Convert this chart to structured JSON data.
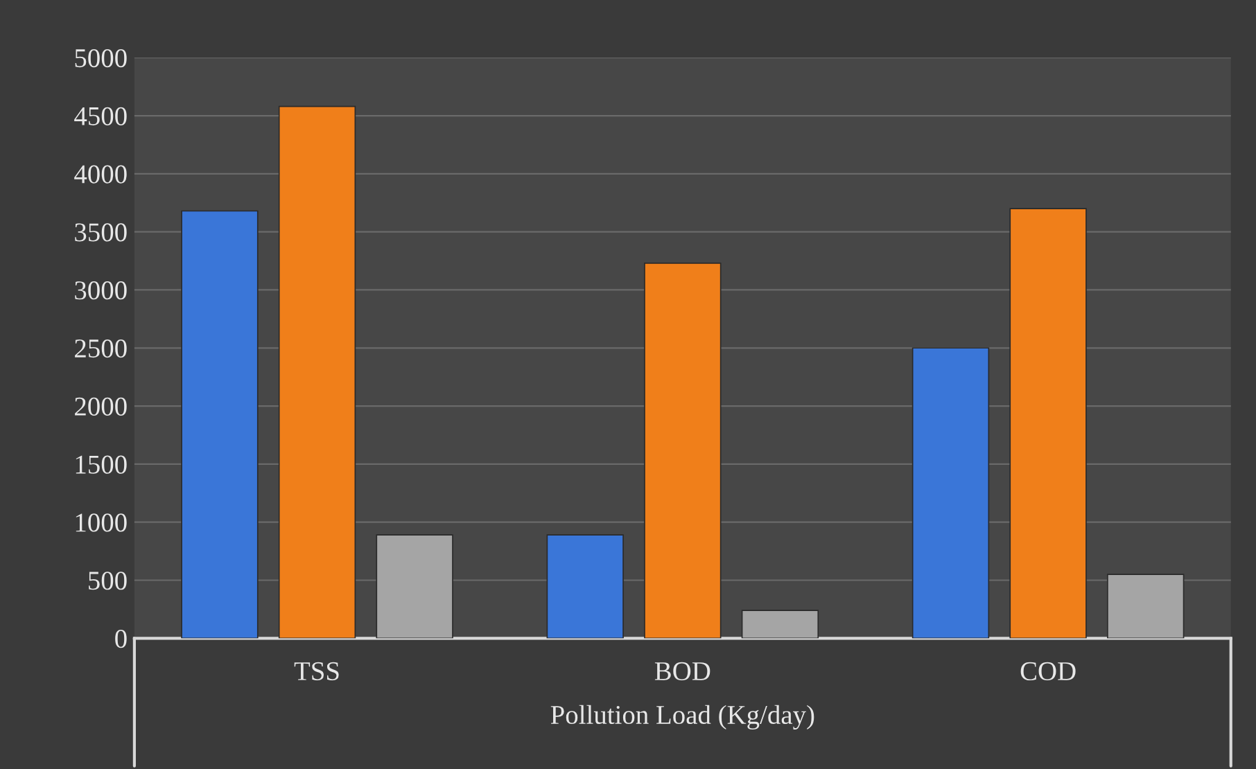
{
  "chart_data": {
    "type": "bar",
    "xlabel": "Pollution Load (Kg/day)",
    "categories": [
      "TSS",
      "BOD",
      "COD"
    ],
    "series": [
      {
        "color": "#3a76d8",
        "values": [
          3680,
          890,
          2500
        ]
      },
      {
        "color": "#f07f1a",
        "values": [
          4580,
          3230,
          3700
        ]
      },
      {
        "color": "#a5a5a5",
        "values": [
          890,
          240,
          550
        ]
      }
    ],
    "ylim": [
      0,
      5000
    ],
    "yticks": [
      0,
      500,
      1000,
      1500,
      2000,
      2500,
      3000,
      3500,
      4000,
      4500,
      5000
    ],
    "grid": "y",
    "legend": false
  }
}
